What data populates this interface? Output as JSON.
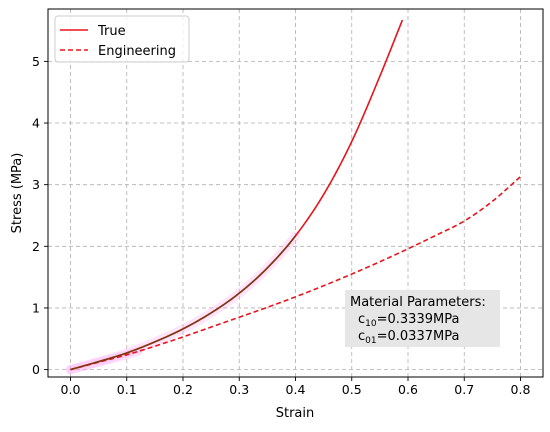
{
  "chart_data": {
    "type": "line",
    "xlabel": "Strain",
    "ylabel": "Stress (MPa)",
    "xlim": [
      -0.04,
      0.84
    ],
    "ylim": [
      -0.12,
      5.85
    ],
    "xticks": [
      0.0,
      0.1,
      0.2,
      0.3,
      0.4,
      0.5,
      0.6,
      0.7,
      0.8
    ],
    "xtick_labels": [
      "0.0",
      "0.1",
      "0.2",
      "0.3",
      "0.4",
      "0.5",
      "0.6",
      "0.7",
      "0.8"
    ],
    "yticks": [
      0,
      1,
      2,
      3,
      4,
      5
    ],
    "ytick_labels": [
      "0",
      "1",
      "2",
      "3",
      "4",
      "5"
    ],
    "grid": true,
    "legend_position": "top-left",
    "series": [
      {
        "name": "True",
        "color": "#e8141b",
        "style": "solid",
        "x": [
          0.0,
          0.05,
          0.1,
          0.15,
          0.2,
          0.25,
          0.3,
          0.35,
          0.4,
          0.45,
          0.5,
          0.55,
          0.59
        ],
        "y": [
          0.0,
          0.13,
          0.27,
          0.45,
          0.66,
          0.92,
          1.24,
          1.65,
          2.17,
          2.84,
          3.7,
          4.76,
          5.67
        ]
      },
      {
        "name": "Engineering",
        "color": "#e8141b",
        "style": "dashed",
        "x": [
          0.0,
          0.05,
          0.1,
          0.15,
          0.2,
          0.25,
          0.3,
          0.35,
          0.4,
          0.45,
          0.5,
          0.55,
          0.6,
          0.65,
          0.7,
          0.75,
          0.8
        ],
        "y": [
          0.0,
          0.12,
          0.24,
          0.38,
          0.53,
          0.69,
          0.85,
          1.01,
          1.18,
          1.36,
          1.55,
          1.75,
          1.96,
          2.18,
          2.41,
          2.73,
          3.13
        ]
      }
    ],
    "overlay": {
      "name": "Fitted (highlighted)",
      "color": "#7c3a10",
      "glow_color": "#ff9ff3",
      "x_max": 0.4
    },
    "annotation": {
      "title": "Material Parameters:",
      "lines": [
        {
          "symbol": "c",
          "subscript": "10",
          "value": "=0.3339MPa"
        },
        {
          "symbol": "c",
          "subscript": "01",
          "value": "=0.0337MPa"
        }
      ],
      "background": "#e6e6e6"
    }
  }
}
